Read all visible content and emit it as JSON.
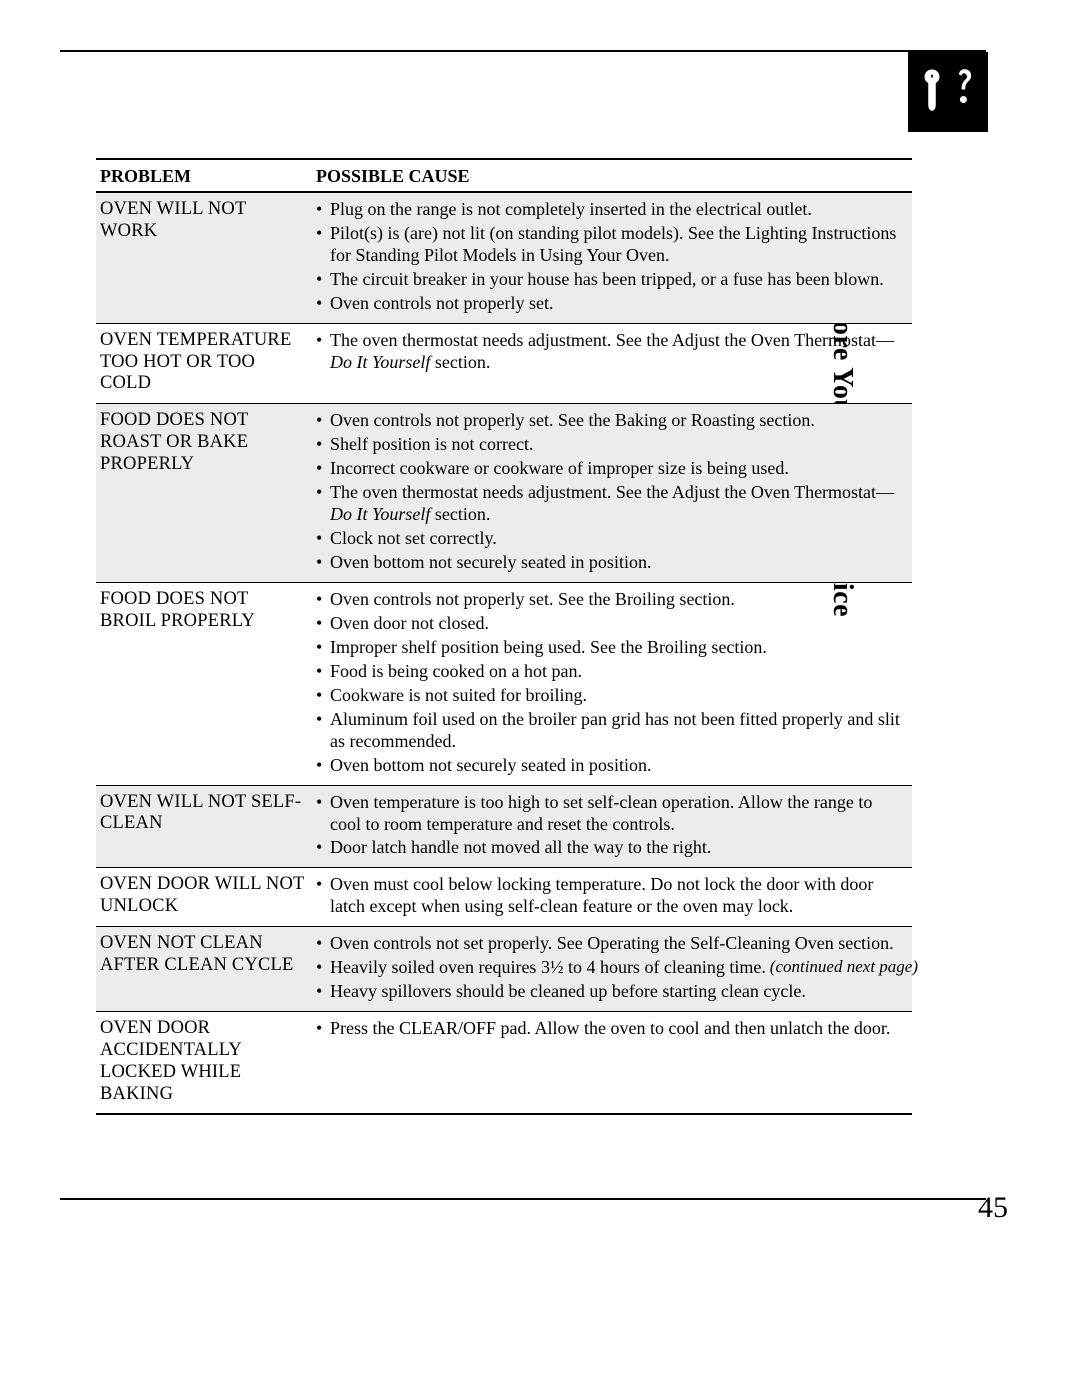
{
  "side_title": "Before You Call for Service",
  "headers": {
    "problem": "PROBLEM",
    "cause": "POSSIBLE CAUSE"
  },
  "rows": [
    {
      "shaded": true,
      "problem": "OVEN WILL NOT WORK",
      "causes": [
        [
          {
            "t": "Plug on the range is not completely inserted in the electrical outlet."
          }
        ],
        [
          {
            "t": "Pilot(s) is (are) not lit (on standing pilot models). See the Lighting Instructions for Standing Pilot Models in Using Your Oven."
          }
        ],
        [
          {
            "t": "The circuit breaker in your house has been tripped, or a fuse has been blown."
          }
        ],
        [
          {
            "t": "Oven controls not properly set."
          }
        ]
      ]
    },
    {
      "shaded": false,
      "problem": "OVEN TEMPERATURE TOO HOT OR TOO COLD",
      "causes": [
        [
          {
            "t": "The oven thermostat needs adjustment. See the Adjust the Oven Thermostat—"
          },
          {
            "t": "Do It Yourself",
            "i": true
          },
          {
            "t": " section."
          }
        ]
      ]
    },
    {
      "shaded": true,
      "problem": "FOOD DOES NOT ROAST OR BAKE PROPERLY",
      "causes": [
        [
          {
            "t": "Oven controls not properly set. See the Baking or Roasting section."
          }
        ],
        [
          {
            "t": "Shelf position is not correct."
          }
        ],
        [
          {
            "t": "Incorrect cookware or cookware of improper size is being used."
          }
        ],
        [
          {
            "t": "The oven thermostat needs adjustment. See the Adjust the Oven Thermostat—"
          },
          {
            "t": "Do It Yourself",
            "i": true
          },
          {
            "t": " section."
          }
        ],
        [
          {
            "t": "Clock not set correctly."
          }
        ],
        [
          {
            "t": "Oven bottom not securely seated in position."
          }
        ]
      ]
    },
    {
      "shaded": false,
      "problem": "FOOD DOES NOT BROIL PROPERLY",
      "causes": [
        [
          {
            "t": "Oven controls not properly set. See the Broiling section."
          }
        ],
        [
          {
            "t": "Oven door not closed."
          }
        ],
        [
          {
            "t": "Improper shelf position being used. See the Broiling section."
          }
        ],
        [
          {
            "t": "Food is being cooked on a hot pan."
          }
        ],
        [
          {
            "t": "Cookware is not suited for broiling."
          }
        ],
        [
          {
            "t": "Aluminum foil used on the broiler pan grid has not been fitted properly and slit as recommended."
          }
        ],
        [
          {
            "t": "Oven bottom not securely seated in position."
          }
        ]
      ]
    },
    {
      "shaded": true,
      "problem": "OVEN WILL NOT SELF-CLEAN",
      "causes": [
        [
          {
            "t": "Oven temperature is too high to set self-clean operation. Allow the range to cool to room temperature and reset the controls."
          }
        ],
        [
          {
            "t": "Door latch handle not moved all the way to the right."
          }
        ]
      ]
    },
    {
      "shaded": false,
      "problem": "OVEN DOOR WILL NOT UNLOCK",
      "causes": [
        [
          {
            "t": "Oven must cool below locking temperature. Do not lock the door with door latch except when using self-clean feature or the oven may lock."
          }
        ]
      ]
    },
    {
      "shaded": true,
      "problem": "OVEN NOT CLEAN AFTER CLEAN CYCLE",
      "causes": [
        [
          {
            "t": "Oven controls not set properly. See Operating the Self-Cleaning Oven section."
          }
        ],
        [
          {
            "t": "Heavily soiled oven requires 3½ to 4 hours of cleaning time."
          }
        ],
        [
          {
            "t": "Heavy spillovers should be cleaned up before starting clean cycle."
          }
        ]
      ]
    },
    {
      "shaded": false,
      "problem": "OVEN DOOR ACCIDENTALLY LOCKED WHILE BAKING",
      "causes": [
        [
          {
            "t": "Press the CLEAR/OFF pad. Allow the oven to cool and then unlatch the door."
          }
        ]
      ]
    }
  ],
  "continued": "(continued next page)",
  "page_number": "45",
  "colors": {
    "shade": "#ececec",
    "rule": "#000000",
    "bg": "#ffffff"
  }
}
